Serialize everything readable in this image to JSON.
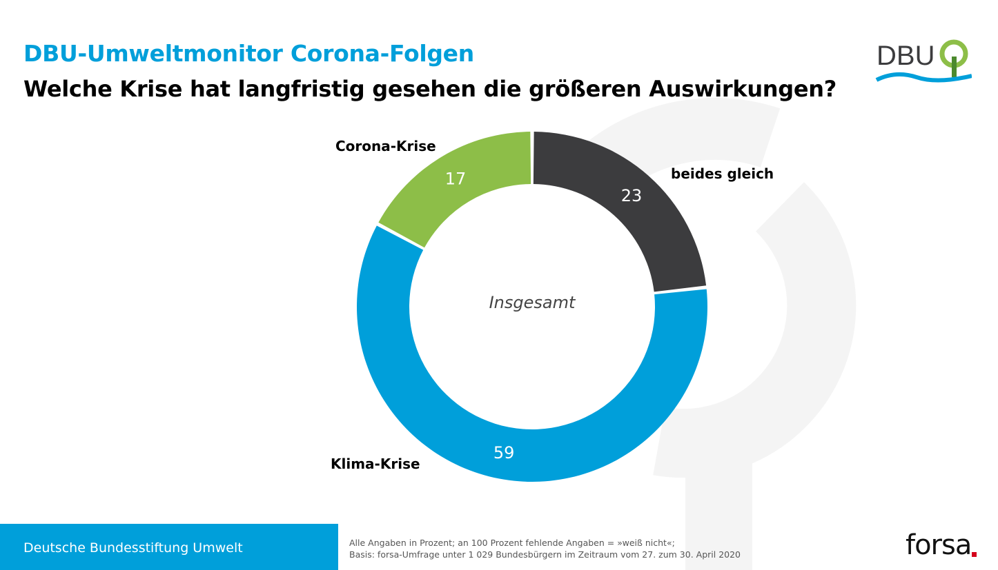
{
  "header": {
    "supertitle": "DBU-Umweltmonitor Corona-Folgen",
    "title": "Welche Krise hat langfristig gesehen die größeren Auswirkungen?",
    "logo_text": "DBU"
  },
  "chart_data": {
    "type": "pie",
    "variant": "donut",
    "center_label": "Insgesamt",
    "unit": "Prozent",
    "slices": [
      {
        "label": "beides gleich",
        "value": 23,
        "color": "#3c3c3e"
      },
      {
        "label": "Klima-Krise",
        "value": 59,
        "color": "#009fda"
      },
      {
        "label": "Corona-Krise",
        "value": 17,
        "color": "#8dbe48"
      }
    ],
    "value_label_color": "#ffffff"
  },
  "footer": {
    "org": "Deutsche Bundesstiftung Umwelt",
    "note1": "Alle Angaben in Prozent; an 100 Prozent fehlende Angaben = »weiß nicht«;",
    "note2": "Basis: forsa-Umfrage unter 1 029 Bundesbürgern im Zeitraum vom 27. zum 30. April 2020",
    "brand": "forsa",
    "accent_color": "#009fda",
    "brand_dot_color": "#d5001c"
  }
}
